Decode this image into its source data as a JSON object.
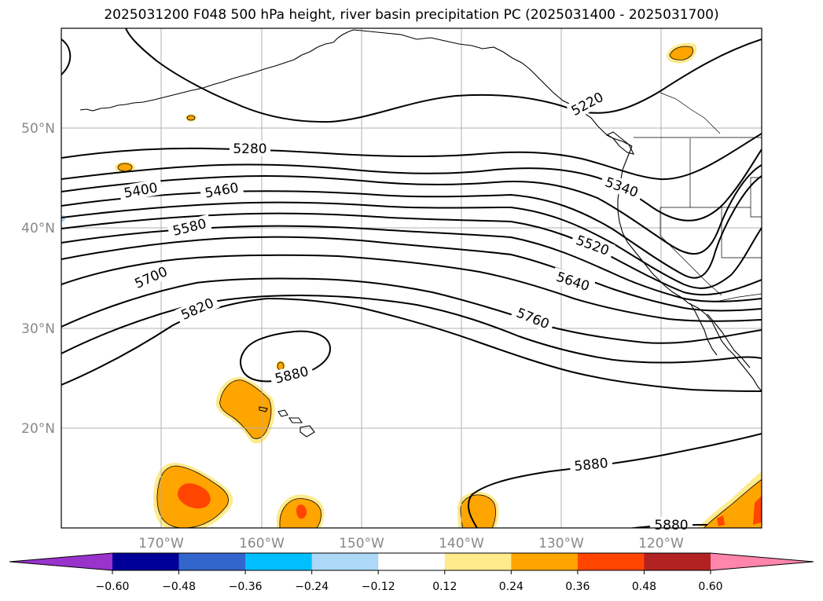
{
  "title": "2025031200 F048 500 hPa height, river basin precipitation PC (2025031400 - 2025031700)",
  "lat_labels": [
    "50°N",
    "40°N",
    "30°N",
    "20°N"
  ],
  "lon_labels": [
    "170°W",
    "160°W",
    "150°W",
    "140°W",
    "130°W",
    "120°W"
  ],
  "contour_labels": [
    "5220",
    "5280",
    "5340",
    "5400",
    "5460",
    "5520",
    "5580",
    "5640",
    "5700",
    "5760",
    "5820",
    "5880",
    "5880",
    "5880"
  ],
  "colorbar": {
    "tick_labels": [
      "−0.60",
      "−0.48",
      "−0.36",
      "−0.24",
      "−0.12",
      "0.12",
      "0.24",
      "0.36",
      "0.48",
      "0.60"
    ],
    "colors": [
      "#9933cc",
      "#000099",
      "#3366cc",
      "#00bfff",
      "#add8f7",
      "#ffffff",
      "#ffea8c",
      "#ffa500",
      "#ff4500",
      "#b22222",
      "#ff85aa"
    ]
  }
}
